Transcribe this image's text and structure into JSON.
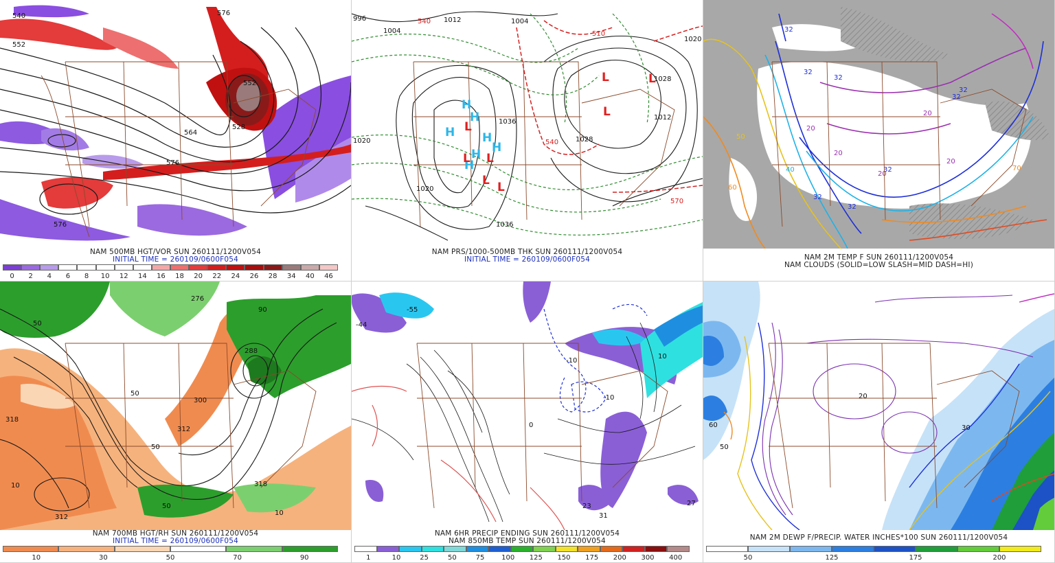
{
  "panels": [
    {
      "id": "vort500",
      "caption": "NAM 500MB HGT/VOR SUN 260111/1200V054",
      "init": "INITIAL TIME = 260109/0600F054",
      "contour_labels": [
        "540",
        "552",
        "576",
        "552",
        "528",
        "564",
        "576",
        "576"
      ],
      "colorbar_colors": [
        "#7b3fd4",
        "#9b6ae0",
        "#b89bea",
        "#ffffff",
        "#ffffff",
        "#ffffff",
        "#ffffff",
        "#ffffff",
        "#f4a7a7",
        "#ee6f6f",
        "#e43b3b",
        "#d41e1e",
        "#c01010",
        "#a50f0f",
        "#8a1a1a",
        "#9a7a7a",
        "#c9a9a9",
        "#f4c7c7"
      ],
      "colorbar_ticks": [
        "0",
        "2",
        "4",
        "6",
        "8",
        "10",
        "12",
        "14",
        "16",
        "18",
        "20",
        "22",
        "24",
        "26",
        "28",
        "34",
        "40",
        "46"
      ]
    },
    {
      "id": "pres_thk",
      "caption": "NAM PRS/1000-500MB THK SUN 260111/1200V054",
      "init": "INITIAL TIME = 260109/0600F054",
      "contour_labels": [
        "996",
        "1004",
        "1012",
        "1004",
        "1020",
        "1020",
        "1028",
        "1036",
        "1028",
        "1012",
        "1020",
        "1036",
        "540",
        "570",
        "510",
        "540"
      ],
      "highs": [
        "H",
        "H",
        "H",
        "H",
        "H",
        "H",
        "H"
      ],
      "lows": [
        "L",
        "L",
        "L",
        "L",
        "L",
        "L",
        "L",
        "L"
      ]
    },
    {
      "id": "temp2m",
      "caption": "NAM 2M TEMP F SUN 260111/1200V054",
      "subcaption": "NAM CLOUDS (SOLID=LOW SLASH=MID DASH=HI)",
      "contour_labels": [
        "32",
        "32",
        "32",
        "32",
        "20",
        "20",
        "20",
        "20",
        "32",
        "32",
        "32",
        "50",
        "40",
        "60",
        "70",
        "20",
        "32"
      ]
    },
    {
      "id": "rh700",
      "caption": "NAM 700MB HGT/RH SUN 260111/1200V054",
      "init": "INITIAL TIME = 260109/0600F054",
      "contour_labels": [
        "318",
        "300",
        "312",
        "312",
        "318",
        "50",
        "50",
        "50",
        "10",
        "10",
        "90",
        "50",
        "276",
        "288"
      ],
      "colorbar_colors": [
        "#f08b4f",
        "#f6b27c",
        "#fbd6b4",
        "#ffffff",
        "#7ccf6f",
        "#2c9e2c"
      ],
      "colorbar_ticks": [
        "10",
        "30",
        "50",
        "70",
        "90"
      ]
    },
    {
      "id": "precip6h",
      "caption": "NAM 6HR PRECIP ENDING SUN 260111/1200V054",
      "subcaption": "NAM 850MB TEMP SUN 260111/1200V054",
      "contour_labels": [
        "-44",
        "-55",
        "-10",
        "10",
        "0",
        "-10",
        "23",
        "31",
        "27"
      ],
      "colorbar_colors": [
        "#ffffff",
        "#8a5fd6",
        "#29c7f0",
        "#2fe0e0",
        "#7fd9d9",
        "#1e8fe0",
        "#1d5fd1",
        "#2bb02b",
        "#7fd14f",
        "#f2e12c",
        "#f0a020",
        "#e46a1a",
        "#d02020",
        "#8a0e0e",
        "#b58a8a"
      ],
      "colorbar_ticks": [
        "1",
        "10",
        "25",
        "50",
        "75",
        "100",
        "125",
        "150",
        "175",
        "200",
        "300",
        "400"
      ]
    },
    {
      "id": "dewpt_pw",
      "caption": "NAM 2M DEWP F/PRECIP. WATER INCHES*100 SUN 260111/1200V054",
      "contour_labels": [
        "50",
        "60",
        "30",
        "20"
      ],
      "colorbar_colors": [
        "#ffffff",
        "#c6e2f8",
        "#7cb8ef",
        "#2c7fe0",
        "#1c52c6",
        "#1f9e3a",
        "#62cc3a",
        "#f1ea1c"
      ],
      "colorbar_ticks": [
        "50",
        "125",
        "175",
        "200"
      ]
    }
  ]
}
